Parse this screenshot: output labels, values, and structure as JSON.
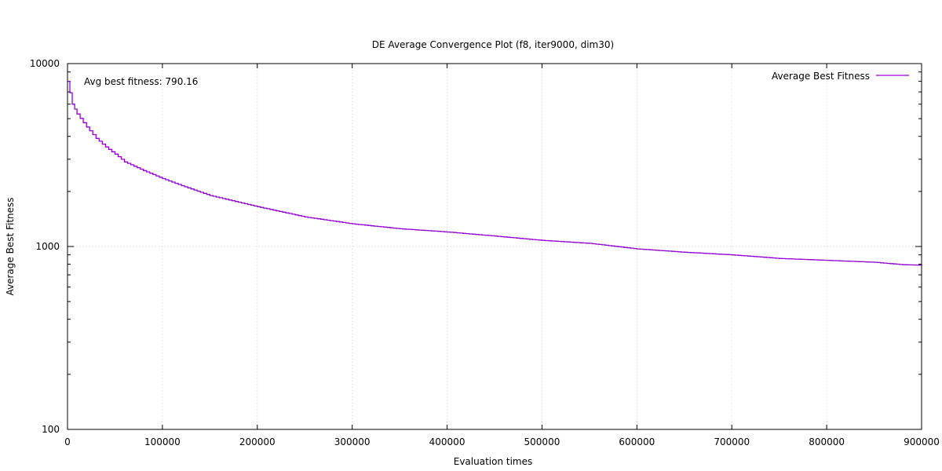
{
  "chart_data": {
    "type": "line",
    "title": "DE Average Convergence Plot (f8, iter9000, dim30)",
    "xlabel": "Evaluation times",
    "ylabel": "Average Best Fitness",
    "xlim": [
      0,
      900000
    ],
    "ylim": [
      100,
      10000
    ],
    "yscale": "log",
    "grid": true,
    "legend_position": "top-right",
    "annotation": "Avg best fitness: 790.16",
    "xticks": [
      0,
      100000,
      200000,
      300000,
      400000,
      500000,
      600000,
      700000,
      800000,
      900000
    ],
    "xtick_labels": [
      "0",
      "100000",
      "200000",
      "300000",
      "400000",
      "500000",
      "600000",
      "700000",
      "800000",
      "900000"
    ],
    "yticks": [
      100,
      1000,
      10000
    ],
    "ytick_labels": [
      "100",
      "1000",
      "10000"
    ],
    "series": [
      {
        "name": "Average Best Fitness",
        "color": "#9400d3",
        "points": [
          [
            0,
            8000
          ],
          [
            5000,
            6000
          ],
          [
            10000,
            5300
          ],
          [
            20000,
            4500
          ],
          [
            30000,
            3900
          ],
          [
            40000,
            3500
          ],
          [
            50000,
            3200
          ],
          [
            60000,
            2900
          ],
          [
            80000,
            2600
          ],
          [
            100000,
            2350
          ],
          [
            120000,
            2150
          ],
          [
            150000,
            1900
          ],
          [
            200000,
            1650
          ],
          [
            250000,
            1450
          ],
          [
            300000,
            1330
          ],
          [
            350000,
            1250
          ],
          [
            400000,
            1200
          ],
          [
            450000,
            1140
          ],
          [
            500000,
            1080
          ],
          [
            550000,
            1040
          ],
          [
            600000,
            970
          ],
          [
            650000,
            930
          ],
          [
            700000,
            900
          ],
          [
            750000,
            860
          ],
          [
            800000,
            840
          ],
          [
            850000,
            820
          ],
          [
            880000,
            795
          ],
          [
            900000,
            790
          ]
        ]
      }
    ]
  }
}
